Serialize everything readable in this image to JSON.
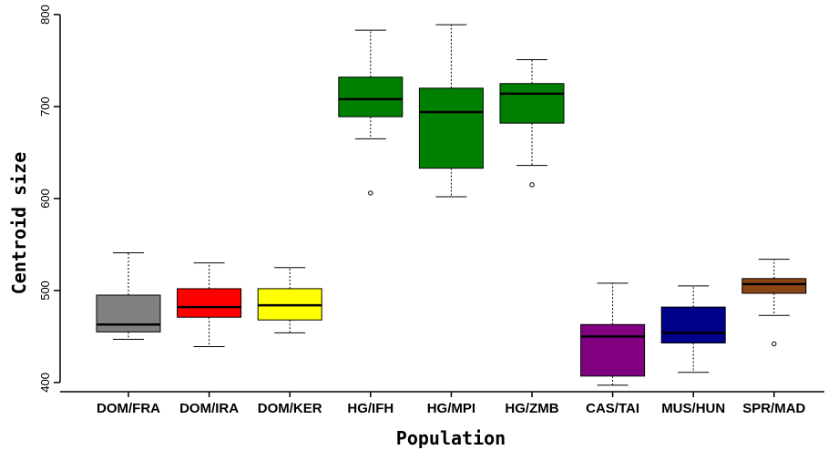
{
  "chart_data": {
    "type": "box",
    "title": "",
    "xlabel": "Population",
    "ylabel": "Centroid size",
    "ylim": [
      390,
      802
    ],
    "yticks": [
      400,
      500,
      600,
      700,
      800
    ],
    "grid": false,
    "legend": "none",
    "categories": [
      "DOM/FRA",
      "DOM/IRA",
      "DOM/KER",
      "HG/IFH",
      "HG/MPI",
      "HG/ZMB",
      "CAS/TAI",
      "MUS/HUN",
      "SPR/MAD"
    ],
    "boxes": [
      {
        "category": "DOM/FRA",
        "color": "#808080",
        "whisker_low": 447,
        "q1": 455,
        "median": 463,
        "q3": 495,
        "whisker_high": 541,
        "outliers": []
      },
      {
        "category": "DOM/IRA",
        "color": "#ff0000",
        "whisker_low": 439,
        "q1": 471,
        "median": 482,
        "q3": 502,
        "whisker_high": 530,
        "outliers": []
      },
      {
        "category": "DOM/KER",
        "color": "#ffff00",
        "whisker_low": 454,
        "q1": 468,
        "median": 484,
        "q3": 502,
        "whisker_high": 525,
        "outliers": []
      },
      {
        "category": "HG/IFH",
        "color": "#008000",
        "whisker_low": 665,
        "q1": 689,
        "median": 708,
        "q3": 732,
        "whisker_high": 783,
        "outliers": [
          606
        ]
      },
      {
        "category": "HG/MPI",
        "color": "#008000",
        "whisker_low": 602,
        "q1": 633,
        "median": 694,
        "q3": 720,
        "whisker_high": 789,
        "outliers": []
      },
      {
        "category": "HG/ZMB",
        "color": "#008000",
        "whisker_low": 636,
        "q1": 682,
        "median": 714,
        "q3": 725,
        "whisker_high": 751,
        "outliers": [
          615
        ]
      },
      {
        "category": "CAS/TAI",
        "color": "#800080",
        "whisker_low": 397,
        "q1": 407,
        "median": 450,
        "q3": 463,
        "whisker_high": 508,
        "outliers": []
      },
      {
        "category": "MUS/HUN",
        "color": "#00008b",
        "whisker_low": 411,
        "q1": 443,
        "median": 454,
        "q3": 482,
        "whisker_high": 505,
        "outliers": []
      },
      {
        "category": "SPR/MAD",
        "color": "#8b4513",
        "whisker_low": 473,
        "q1": 497,
        "median": 507,
        "q3": 513,
        "whisker_high": 534,
        "outliers": [
          442
        ]
      }
    ]
  }
}
